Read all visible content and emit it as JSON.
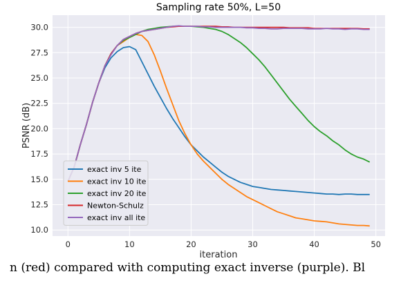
{
  "chart_data": {
    "type": "line",
    "title": "Sampling rate 50%, L=50",
    "xlabel": "iteration",
    "ylabel": "PSNR (dB)",
    "xlim": [
      -2.5,
      51.5
    ],
    "ylim": [
      9.4,
      31.2
    ],
    "xticks": [
      0,
      10,
      20,
      30,
      40,
      50
    ],
    "yticks": [
      10.0,
      12.5,
      15.0,
      17.5,
      20.0,
      22.5,
      25.0,
      27.5,
      30.0
    ],
    "grid": true,
    "legend_position": "lower-left",
    "x": [
      0,
      1,
      2,
      3,
      4,
      5,
      6,
      7,
      8,
      9,
      10,
      11,
      12,
      13,
      14,
      15,
      16,
      17,
      18,
      19,
      20,
      21,
      22,
      23,
      24,
      25,
      26,
      27,
      28,
      29,
      30,
      31,
      32,
      33,
      34,
      35,
      36,
      37,
      38,
      39,
      40,
      41,
      42,
      43,
      44,
      45,
      46,
      47,
      48,
      49
    ],
    "series": [
      {
        "name": "exact inv 5 ite",
        "color": "#1f77b4",
        "values": [
          14.8,
          16.2,
          18.4,
          20.4,
          22.6,
          24.5,
          26.0,
          27.0,
          27.6,
          28.0,
          28.1,
          27.8,
          26.6,
          25.4,
          24.2,
          23.1,
          22.0,
          21.0,
          20.1,
          19.2,
          18.4,
          17.8,
          17.2,
          16.7,
          16.2,
          15.7,
          15.3,
          15.0,
          14.7,
          14.5,
          14.3,
          14.2,
          14.1,
          14.0,
          13.95,
          13.9,
          13.85,
          13.8,
          13.75,
          13.7,
          13.65,
          13.6,
          13.55,
          13.55,
          13.5,
          13.55,
          13.55,
          13.5,
          13.5,
          13.5
        ]
      },
      {
        "name": "exact inv 10 ite",
        "color": "#ff7f0e",
        "values": [
          14.8,
          16.2,
          18.4,
          20.4,
          22.6,
          24.5,
          26.2,
          27.4,
          28.2,
          28.6,
          29.0,
          29.3,
          29.2,
          28.6,
          27.3,
          25.7,
          24.0,
          22.4,
          20.8,
          19.5,
          18.4,
          17.5,
          16.8,
          16.2,
          15.6,
          15.0,
          14.5,
          14.1,
          13.7,
          13.3,
          13.0,
          12.7,
          12.4,
          12.1,
          11.8,
          11.6,
          11.4,
          11.2,
          11.1,
          11.0,
          10.9,
          10.85,
          10.8,
          10.7,
          10.6,
          10.55,
          10.5,
          10.45,
          10.45,
          10.4
        ]
      },
      {
        "name": "exact inv 20 ite",
        "color": "#2ca02c",
        "values": [
          14.8,
          16.2,
          18.4,
          20.4,
          22.6,
          24.5,
          26.2,
          27.4,
          28.2,
          28.7,
          29.0,
          29.3,
          29.6,
          29.8,
          29.9,
          30.0,
          30.05,
          30.1,
          30.1,
          30.1,
          30.1,
          30.05,
          30.0,
          29.9,
          29.8,
          29.6,
          29.3,
          28.9,
          28.5,
          28.0,
          27.4,
          26.8,
          26.1,
          25.3,
          24.5,
          23.7,
          22.9,
          22.2,
          21.5,
          20.8,
          20.2,
          19.7,
          19.3,
          18.8,
          18.4,
          17.9,
          17.5,
          17.2,
          17.0,
          16.7
        ]
      },
      {
        "name": "Newton-Schulz",
        "color": "#d62728",
        "values": [
          14.8,
          16.2,
          18.4,
          20.4,
          22.6,
          24.5,
          26.2,
          27.4,
          28.2,
          28.8,
          29.1,
          29.4,
          29.6,
          29.7,
          29.8,
          29.9,
          30.0,
          30.05,
          30.1,
          30.1,
          30.1,
          30.1,
          30.1,
          30.1,
          30.1,
          30.05,
          30.05,
          30.0,
          30.0,
          30.0,
          30.0,
          30.0,
          30.0,
          30.0,
          30.0,
          30.0,
          29.95,
          29.95,
          29.95,
          29.95,
          29.9,
          29.9,
          29.9,
          29.9,
          29.9,
          29.9,
          29.9,
          29.9,
          29.85,
          29.85
        ]
      },
      {
        "name": "exact inv all ite",
        "color": "#9467bd",
        "values": [
          14.8,
          16.2,
          18.4,
          20.4,
          22.6,
          24.5,
          26.2,
          27.3,
          28.2,
          28.8,
          29.1,
          29.4,
          29.6,
          29.7,
          29.8,
          29.9,
          30.0,
          30.1,
          30.15,
          30.1,
          30.1,
          30.1,
          30.05,
          30.05,
          30.0,
          30.0,
          30.0,
          30.0,
          30.0,
          29.95,
          29.95,
          29.9,
          29.9,
          29.85,
          29.85,
          29.9,
          29.9,
          29.9,
          29.9,
          29.85,
          29.85,
          29.85,
          29.9,
          29.85,
          29.85,
          29.8,
          29.85,
          29.85,
          29.8,
          29.8
        ]
      }
    ]
  },
  "caption": "n (red) compared with computing exact inverse (purple). Bl"
}
